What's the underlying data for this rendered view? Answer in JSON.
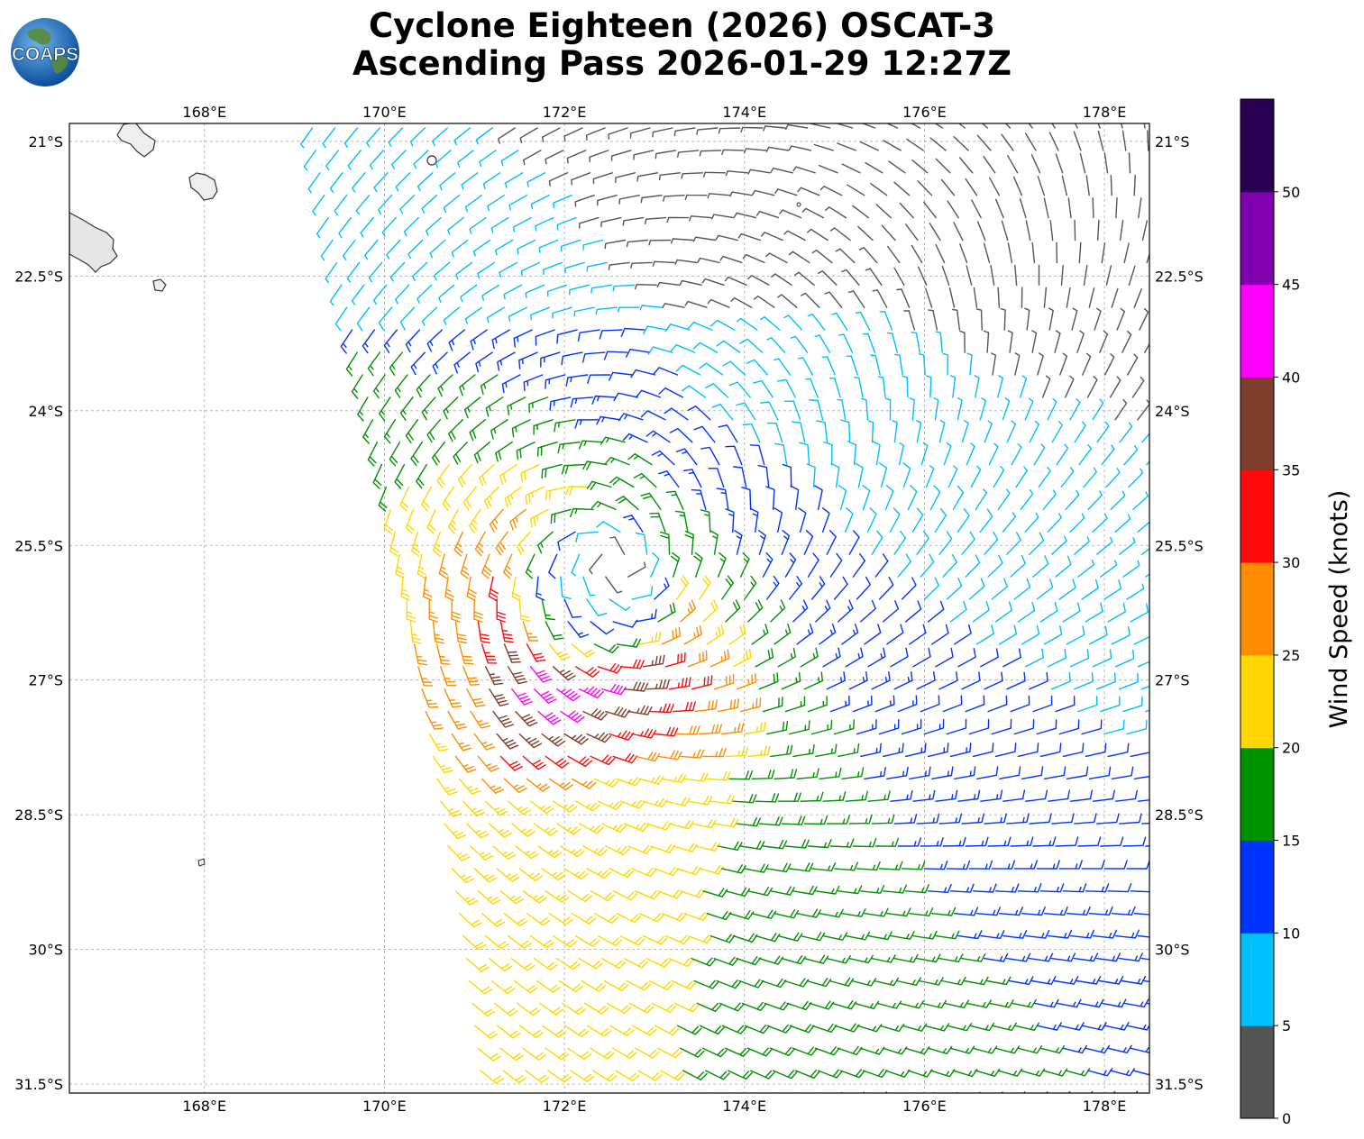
{
  "title": {
    "line1": "Cyclone Eighteen (2026) OSCAT-3",
    "line2": "Ascending Pass 2026-01-29 12:27Z"
  },
  "logo": {
    "text": "COAPS",
    "icon": "globe-icon"
  },
  "map": {
    "lon_range": [
      166.5,
      178.5
    ],
    "lat_range": [
      -31.6,
      -20.8
    ],
    "grid": true,
    "lon_ticks": [
      {
        "value": 168,
        "label": "168°E"
      },
      {
        "value": 170,
        "label": "170°E"
      },
      {
        "value": 172,
        "label": "172°E"
      },
      {
        "value": 174,
        "label": "174°E"
      },
      {
        "value": 176,
        "label": "176°E"
      },
      {
        "value": 178,
        "label": "178°E"
      }
    ],
    "lat_ticks": [
      {
        "value": -21,
        "label": "21°S"
      },
      {
        "value": -22.5,
        "label": "22.5°S"
      },
      {
        "value": -24,
        "label": "24°S"
      },
      {
        "value": -25.5,
        "label": "25.5°S"
      },
      {
        "value": -27,
        "label": "27°S"
      },
      {
        "value": -28.5,
        "label": "28.5°S"
      },
      {
        "value": -30,
        "label": "30°S"
      },
      {
        "value": -31.5,
        "label": "31.5°S"
      }
    ],
    "cyclone_center": {
      "lon": 172.25,
      "lat": -26.0
    },
    "swath_edge_lon": [
      {
        "lat": -20.9,
        "lon": 169.2
      },
      {
        "lat": -22.5,
        "lon": 169.5
      },
      {
        "lat": -24.0,
        "lon": 169.85
      },
      {
        "lat": -25.5,
        "lon": 170.15
      },
      {
        "lat": -27.0,
        "lon": 170.4
      },
      {
        "lat": -28.5,
        "lon": 170.65
      },
      {
        "lat": -30.0,
        "lon": 170.9
      },
      {
        "lat": -31.6,
        "lon": 171.1
      }
    ],
    "grid_spacing_deg": 0.25
  },
  "colorbar": {
    "label": "Wind Speed (knots)",
    "ticks": [
      "0",
      "5",
      "10",
      "15",
      "20",
      "25",
      "30",
      "35",
      "40",
      "45",
      "50"
    ],
    "bins": [
      {
        "min": 0,
        "max": 5,
        "color": "#555555"
      },
      {
        "min": 5,
        "max": 10,
        "color": "#00bfff"
      },
      {
        "min": 10,
        "max": 15,
        "color": "#0033ff"
      },
      {
        "min": 15,
        "max": 20,
        "color": "#009100"
      },
      {
        "min": 20,
        "max": 25,
        "color": "#ffd700"
      },
      {
        "min": 25,
        "max": 30,
        "color": "#ff8c00"
      },
      {
        "min": 30,
        "max": 35,
        "color": "#ff0a0a"
      },
      {
        "min": 35,
        "max": 40,
        "color": "#7f3d2b"
      },
      {
        "min": 40,
        "max": 45,
        "color": "#ff00ff"
      },
      {
        "min": 45,
        "max": 50,
        "color": "#8000b0"
      },
      {
        "min": 50,
        "max": 55,
        "color": "#2a0055"
      }
    ]
  },
  "colors": {
    "land": "#eeeeee",
    "coast": "#333333",
    "grid": "#aaaaaa"
  }
}
